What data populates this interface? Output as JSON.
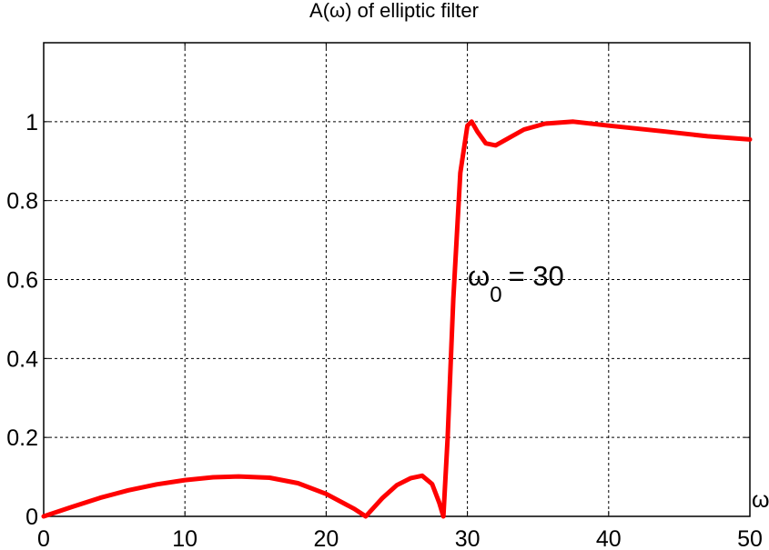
{
  "chart_data": {
    "type": "line",
    "title": "A(ω) of elliptic filter",
    "xlabel": "ω",
    "ylabel": "",
    "xlim": [
      0,
      50
    ],
    "ylim": [
      0,
      1.2
    ],
    "xticks": [
      0,
      10,
      20,
      30,
      40,
      50
    ],
    "yticks": [
      0,
      0.2,
      0.4,
      0.6,
      0.8,
      1
    ],
    "xtick_labels": [
      "0",
      "10",
      "20",
      "30",
      "40",
      "50"
    ],
    "ytick_labels": [
      "0",
      "0.2",
      "0.4",
      "0.6",
      "0.8",
      "1"
    ],
    "grid": true,
    "annotation": {
      "symbol": "ω",
      "subscript": "0",
      "text": "= 30"
    },
    "series": [
      {
        "color": "#ff0000",
        "x": [
          0,
          2,
          4,
          6,
          8,
          10,
          12,
          13.8,
          16,
          18,
          20,
          22,
          22.8,
          24,
          25,
          26,
          26.8,
          27.5,
          28,
          28.3,
          28.6,
          29,
          29.5,
          30,
          30.3,
          30.7,
          31.3,
          32,
          33,
          34,
          35.5,
          37.5,
          40,
          44,
          47,
          50
        ],
        "y": [
          0,
          0.024,
          0.047,
          0.066,
          0.081,
          0.092,
          0.099,
          0.101,
          0.098,
          0.084,
          0.057,
          0.019,
          0,
          0.047,
          0.079,
          0.097,
          0.103,
          0.082,
          0.035,
          0,
          0.2,
          0.55,
          0.87,
          0.99,
          1.0,
          0.975,
          0.945,
          0.94,
          0.96,
          0.98,
          0.995,
          1.0,
          0.99,
          0.975,
          0.963,
          0.955
        ]
      }
    ]
  }
}
